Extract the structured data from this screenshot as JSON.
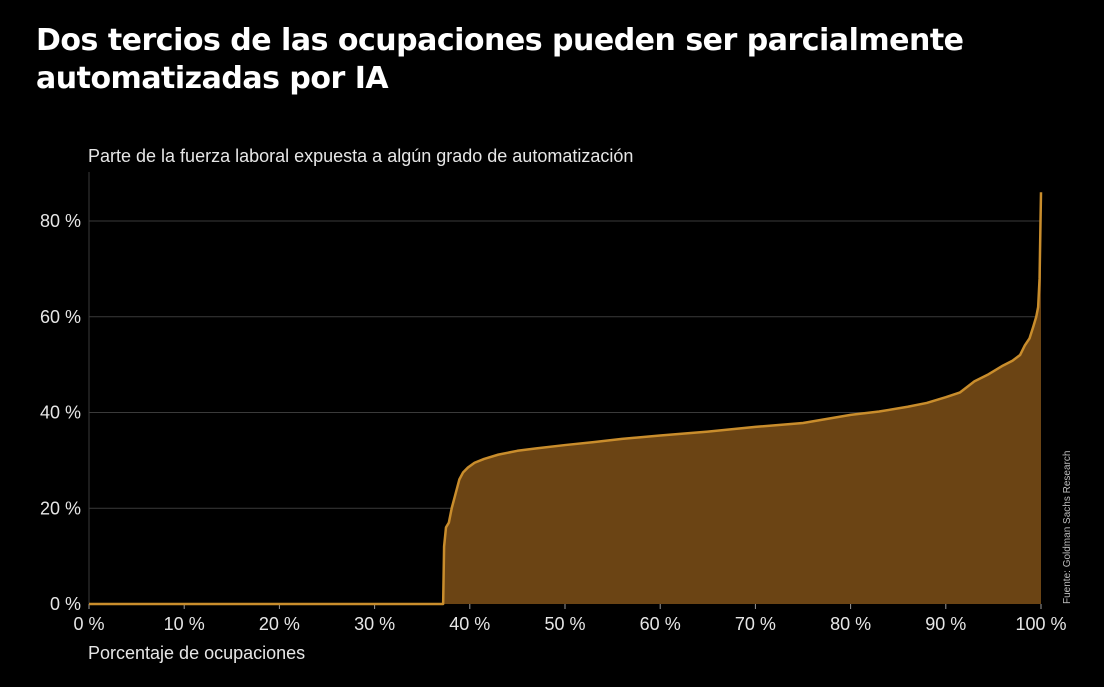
{
  "title": "Dos tercios de las ocupaciones pueden ser parcialmente automatizadas por IA",
  "source": "Fuente: Goldman Sachs Research",
  "colors": {
    "fill": "#6b4414",
    "line": "#c98d2c",
    "grid": "#3a3a3a",
    "background": "#000000"
  },
  "chart_data": {
    "type": "area",
    "title": "Dos tercios de las ocupaciones pueden ser parcialmente automatizadas por IA",
    "ylabel": "Parte de la fuerza laboral expuesta a algún grado de automatización",
    "xlabel": "Porcentaje de ocupaciones",
    "xlim": [
      0,
      100
    ],
    "ylim": [
      0,
      90
    ],
    "grid": "horizontal",
    "x_ticks": [
      0,
      10,
      20,
      30,
      40,
      50,
      60,
      70,
      80,
      90,
      100
    ],
    "x_tick_labels": [
      "0 %",
      "10 %",
      "20 %",
      "30 %",
      "40 %",
      "50 %",
      "60 %",
      "70 %",
      "80 %",
      "90 %",
      "100 %"
    ],
    "y_ticks": [
      0,
      20,
      40,
      60,
      80
    ],
    "y_tick_labels": [
      "0 %",
      "20 %",
      "40 %",
      "60 %",
      "80 %"
    ],
    "series": [
      {
        "x": [
          0,
          37.2,
          37.3,
          37.5,
          37.8,
          38.1,
          38.5,
          38.9,
          39.3,
          39.8,
          40.5,
          41.5,
          43,
          45,
          47,
          50,
          53,
          56,
          60,
          65,
          70,
          75,
          80,
          83,
          86,
          88,
          90,
          91.5,
          93,
          94.5,
          96,
          97,
          97.8,
          98.3,
          98.8,
          99.2,
          99.5,
          99.7,
          99.85,
          100
        ],
        "y": [
          0,
          0,
          12,
          16,
          17,
          20,
          23,
          26,
          27.5,
          28.5,
          29.5,
          30.3,
          31.2,
          32,
          32.5,
          33.2,
          33.8,
          34.5,
          35.2,
          36,
          37,
          37.8,
          39.5,
          40.2,
          41.2,
          42,
          43.2,
          44.2,
          46.5,
          48,
          49.8,
          50.8,
          52,
          54,
          55.5,
          58,
          60,
          62,
          68,
          86
        ]
      }
    ]
  }
}
